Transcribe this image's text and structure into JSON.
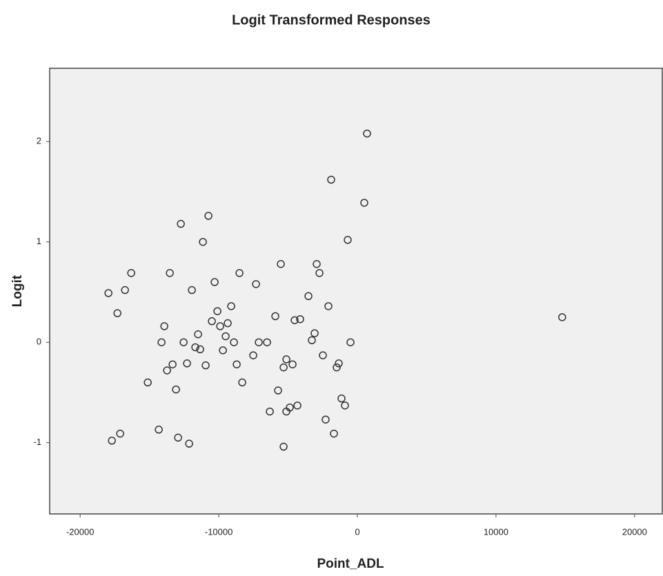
{
  "chart_data": {
    "type": "scatter",
    "title": "Logit Transformed Responses",
    "x_label": "Point_ADL",
    "y_label": "Logit",
    "x": [
      697,
      -1891,
      498,
      -697,
      -10746,
      -12736,
      -11144,
      -16318,
      -13532,
      -8507,
      -5522,
      -2935,
      -2736,
      -10299,
      -7313,
      -17960,
      -16766,
      -11940,
      -17313,
      -3532,
      -10100,
      -9104,
      -2090,
      -5920,
      -4527,
      -4129,
      14776,
      -10498,
      -9900,
      -9353,
      -13930,
      -11493,
      -3085,
      -9502,
      -3284,
      -14129,
      -12537,
      -8905,
      -7114,
      -6517,
      -498,
      -11692,
      -11343,
      -9701,
      -7512,
      -2488,
      -13333,
      -12289,
      -10945,
      -8706,
      -5124,
      -4677,
      -5323,
      -1343,
      -1493,
      -13731,
      -15124,
      -8308,
      -13085,
      -5721,
      -1144,
      -896,
      -4328,
      -4876,
      -6318,
      -5124,
      -2289,
      -1692,
      -17114,
      -17711,
      -14328,
      -12935,
      -12139,
      -5323
    ],
    "values": [
      2.08,
      1.62,
      1.39,
      1.02,
      1.26,
      1.18,
      1.0,
      0.69,
      0.69,
      0.69,
      0.78,
      0.78,
      0.69,
      0.6,
      0.58,
      0.49,
      0.52,
      0.52,
      0.29,
      0.46,
      0.31,
      0.36,
      0.36,
      0.26,
      0.22,
      0.23,
      0.25,
      0.21,
      0.16,
      0.19,
      0.16,
      0.08,
      0.09,
      0.06,
      0.02,
      0.0,
      0.0,
      0.0,
      0.0,
      0.0,
      0.0,
      -0.05,
      -0.07,
      -0.08,
      -0.13,
      -0.13,
      -0.22,
      -0.21,
      -0.23,
      -0.22,
      -0.17,
      -0.22,
      -0.25,
      -0.21,
      -0.25,
      -0.28,
      -0.4,
      -0.4,
      -0.47,
      -0.48,
      -0.56,
      -0.63,
      -0.63,
      -0.65,
      -0.69,
      -0.69,
      -0.77,
      -0.91,
      -0.91,
      -0.98,
      -0.87,
      -0.95,
      -1.01,
      -1.04
    ],
    "color": "#333333",
    "plot_background": "#f0f0f0",
    "xlim": [
      -22200,
      22000
    ],
    "xticks": [
      -20000,
      -10000,
      0,
      10000,
      20000
    ],
    "ylim": [
      -1.71,
      2.73
    ],
    "yticks": [
      -1,
      0,
      1,
      2
    ],
    "grid": false
  }
}
